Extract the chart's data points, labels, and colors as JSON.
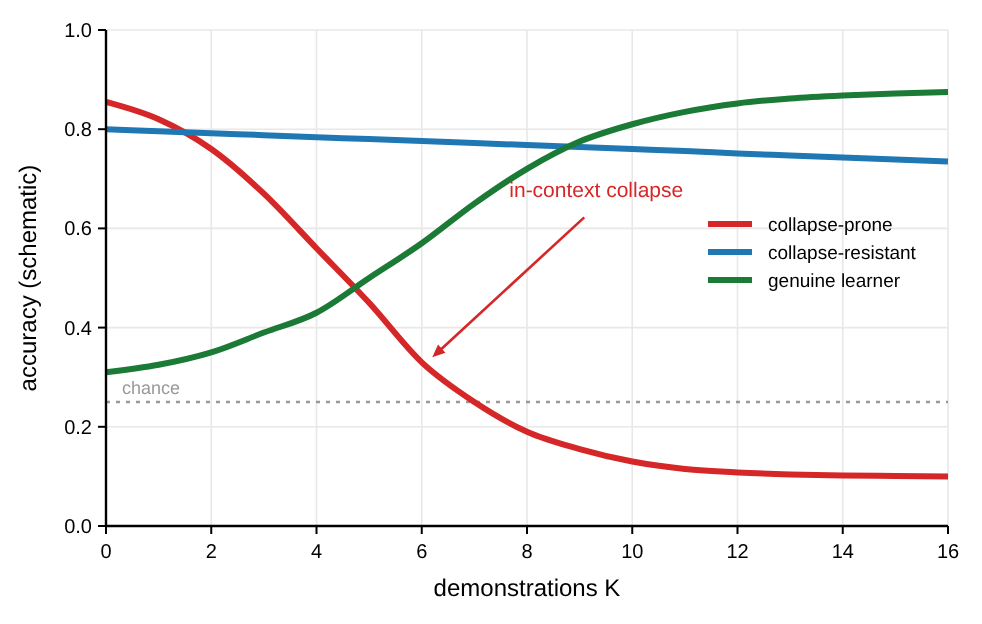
{
  "chart_data": {
    "type": "line",
    "xlabel": "demonstrations K",
    "ylabel": "accuracy (schematic)",
    "x": [
      0,
      1,
      2,
      3,
      4,
      5,
      6,
      7,
      8,
      9,
      10,
      11,
      12,
      13,
      14,
      15,
      16
    ],
    "series": [
      {
        "name": "collapse-prone",
        "color": "#d62728",
        "values": [
          0.855,
          0.82,
          0.76,
          0.67,
          0.56,
          0.45,
          0.33,
          0.25,
          0.19,
          0.155,
          0.13,
          0.115,
          0.108,
          0.104,
          0.102,
          0.101,
          0.1
        ]
      },
      {
        "name": "collapse-resistant",
        "color": "#1f77b4",
        "values": [
          0.8,
          0.796,
          0.792,
          0.788,
          0.784,
          0.78,
          0.776,
          0.772,
          0.768,
          0.764,
          0.76,
          0.756,
          0.751,
          0.747,
          0.743,
          0.739,
          0.735
        ]
      },
      {
        "name": "genuine learner",
        "color": "#1a7a36",
        "values": [
          0.31,
          0.325,
          0.35,
          0.39,
          0.43,
          0.5,
          0.57,
          0.65,
          0.72,
          0.775,
          0.81,
          0.835,
          0.852,
          0.862,
          0.868,
          0.872,
          0.875
        ]
      }
    ],
    "xlim": [
      0,
      16
    ],
    "xticks": [
      0,
      2,
      4,
      6,
      8,
      10,
      12,
      14,
      16
    ],
    "ylim": [
      0,
      1
    ],
    "yticks": [
      {
        "value": 0,
        "label": "0.0"
      },
      {
        "value": 0.2,
        "label": "0.2"
      },
      {
        "value": 0.4,
        "label": "0.4"
      },
      {
        "value": 0.6,
        "label": "0.6"
      },
      {
        "value": 0.8,
        "label": "0.8"
      },
      {
        "value": 1,
        "label": "1.0"
      }
    ],
    "ref_lines": [
      {
        "axis": "y",
        "value": 0.25,
        "label": "chance",
        "color": "#999999",
        "line_style": "dotted"
      }
    ],
    "annotations": [
      {
        "text": "in-context collapse",
        "x": 6.2,
        "y": 0.34
      }
    ],
    "grid": true,
    "legend": "center right",
    "marker": "none",
    "line_style": "solid"
  }
}
